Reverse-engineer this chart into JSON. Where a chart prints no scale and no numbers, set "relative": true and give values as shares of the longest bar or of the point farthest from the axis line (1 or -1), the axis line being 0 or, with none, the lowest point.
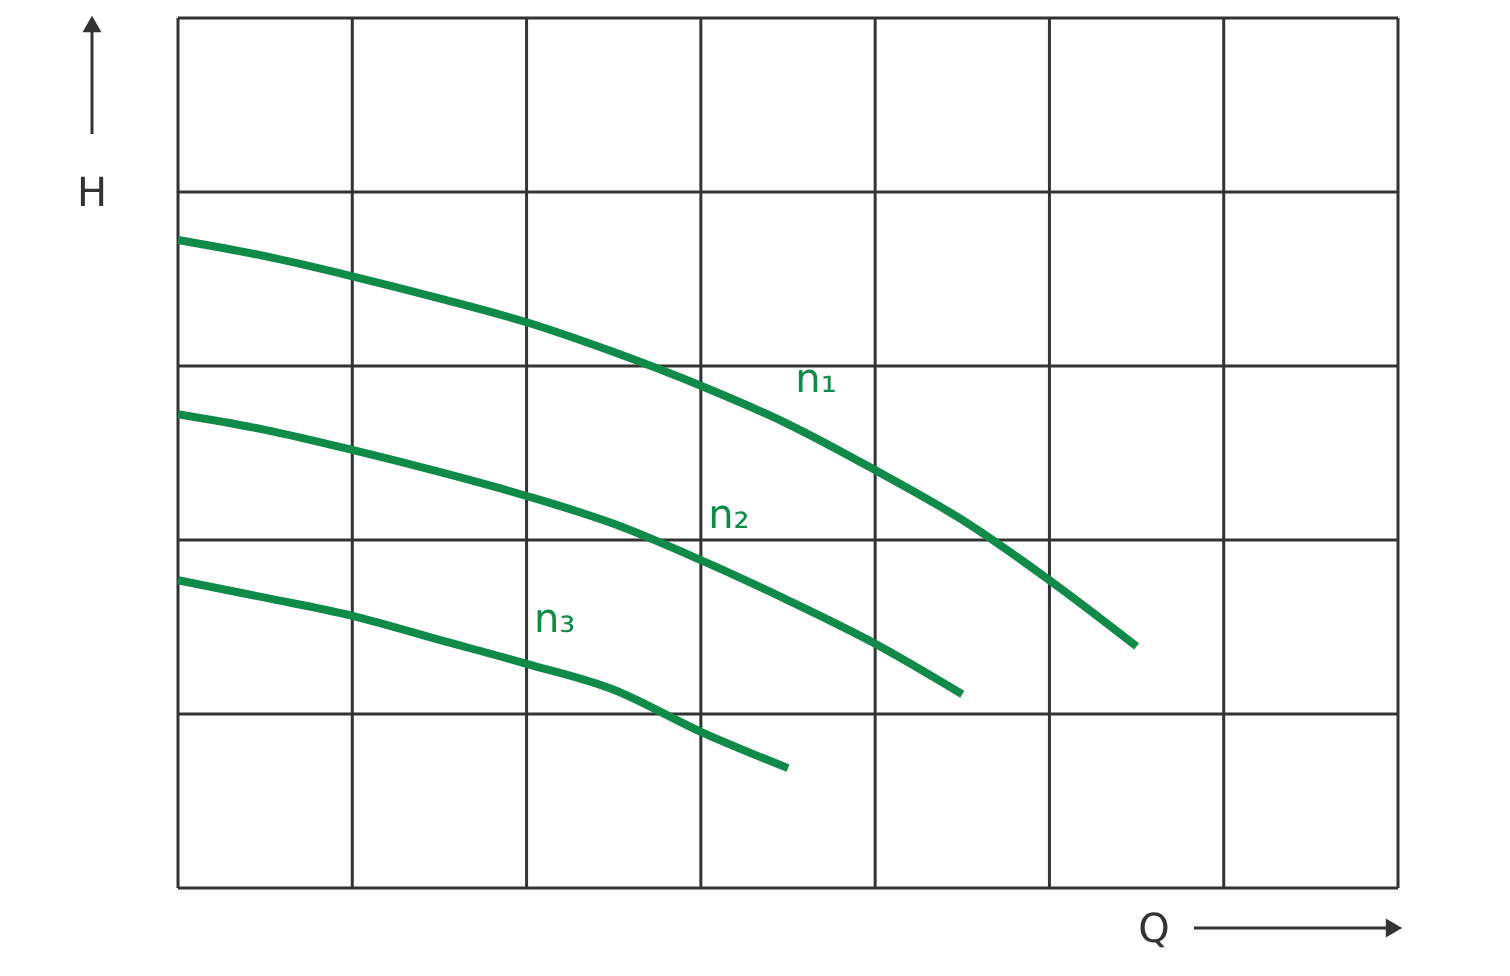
{
  "chart_data": {
    "type": "line",
    "relative": true,
    "xlabel": "Q",
    "ylabel": "H",
    "grid": true,
    "marker": "none",
    "line_style": "solid",
    "categories": [
      null,
      null,
      null,
      null,
      null,
      null,
      null,
      null,
      null,
      null,
      null,
      null,
      null,
      null,
      null
    ],
    "series": [
      {
        "name": "n₁",
        "color": "#108a48",
        "values": [
          1,
          0.975,
          0.944,
          0.91,
          0.873,
          0.827,
          0.775,
          0.716,
          0.645,
          0.568,
          0.475,
          0.373,
          null,
          null,
          null
        ]
      },
      {
        "name": "n₂",
        "color": "#108a48",
        "values": [
          0.731,
          0.707,
          0.676,
          0.642,
          0.605,
          0.562,
          0.506,
          0.444,
          0.377,
          0.299,
          null,
          null,
          null,
          null,
          null
        ]
      },
      {
        "name": "n₃",
        "color": "#108a48",
        "values": [
          0.475,
          0.448,
          0.42,
          0.383,
          0.346,
          0.306,
          0.241,
          0.185,
          null,
          null,
          null,
          null,
          null,
          null,
          null
        ]
      }
    ]
  }
}
